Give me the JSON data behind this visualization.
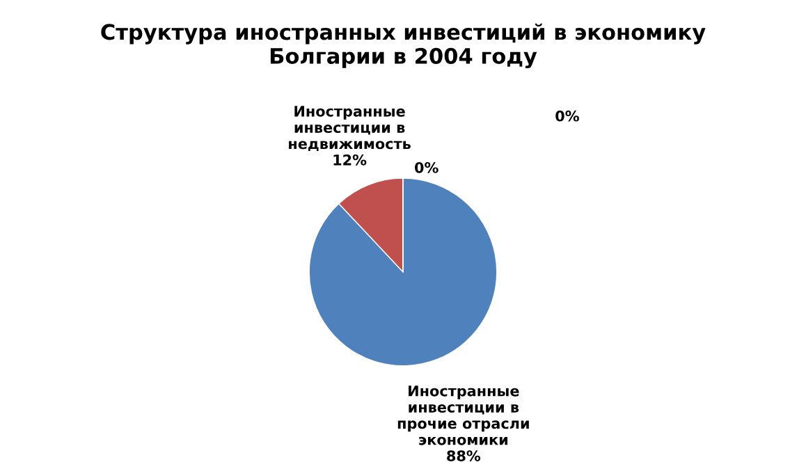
{
  "chart_data": {
    "type": "pie",
    "title": "Структура иностранных инвестиций в экономику\nБолгарии в 2004 году",
    "categories": [
      "Иностранные\nинвестиции в\nнедвижимость",
      "Иностранные\nинвестиции в\nпрочие отрасли\nэкономики",
      null,
      null
    ],
    "values": [
      12,
      88,
      0,
      0
    ],
    "value_labels": [
      "12%",
      "88%",
      "0%",
      "0%"
    ],
    "colors": [
      "#c0504d",
      "#4f81bd",
      "#9bbb59",
      "#8064a2"
    ],
    "legend": false
  }
}
